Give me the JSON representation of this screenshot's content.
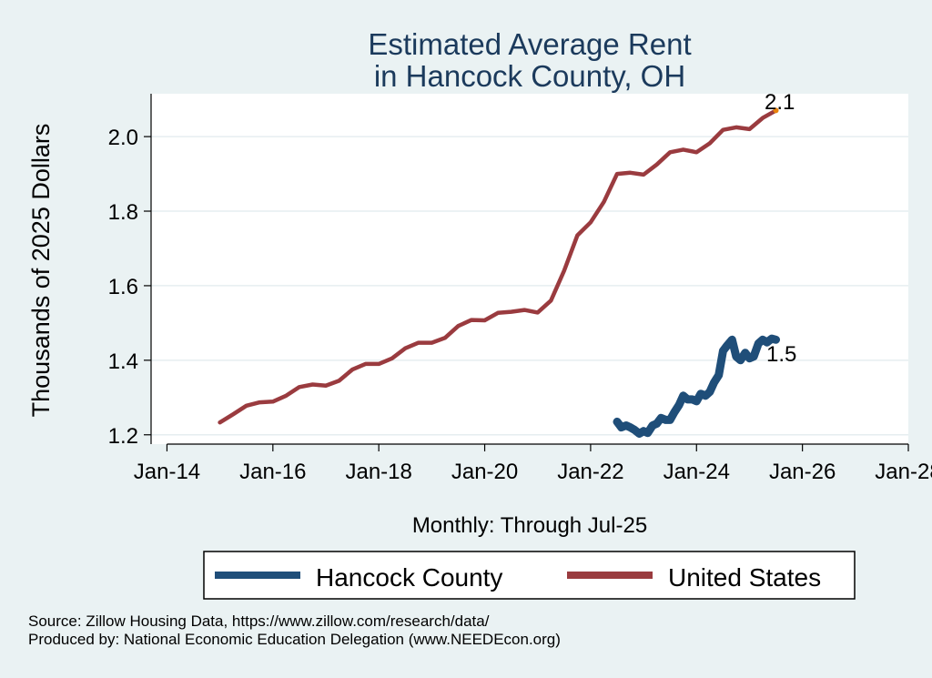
{
  "chart_data": {
    "type": "line",
    "title_lines": [
      "Estimated Average Rent",
      "in Hancock County, OH"
    ],
    "xlabel": "Monthly: Through Jul-25",
    "ylabel": "Thousands of 2025 Dollars",
    "xlim": [
      2013.7,
      2028.0
    ],
    "ylim": [
      1.175,
      2.115
    ],
    "x_ticks": [
      2014,
      2016,
      2018,
      2020,
      2022,
      2024,
      2026,
      2028
    ],
    "x_tick_labels": [
      "Jan-14",
      "Jan-16",
      "Jan-18",
      "Jan-20",
      "Jan-22",
      "Jan-24",
      "Jan-26",
      "Jan-28"
    ],
    "y_ticks": [
      1.2,
      1.4,
      1.6,
      1.8,
      2.0
    ],
    "y_tick_labels": [
      "1.2",
      "1.4",
      "1.6",
      "1.8",
      "2.0"
    ],
    "grid": "horizontal",
    "series": [
      {
        "name": "Hancock County",
        "color": "#1f4e79",
        "end_label": "1.5",
        "points": [
          [
            2022.5,
            1.235
          ],
          [
            2022.58,
            1.22
          ],
          [
            2022.67,
            1.225
          ],
          [
            2022.75,
            1.22
          ],
          [
            2022.83,
            1.213
          ],
          [
            2022.92,
            1.203
          ],
          [
            2023.0,
            1.21
          ],
          [
            2023.08,
            1.205
          ],
          [
            2023.17,
            1.225
          ],
          [
            2023.25,
            1.23
          ],
          [
            2023.33,
            1.245
          ],
          [
            2023.42,
            1.24
          ],
          [
            2023.5,
            1.24
          ],
          [
            2023.58,
            1.26
          ],
          [
            2023.67,
            1.28
          ],
          [
            2023.75,
            1.305
          ],
          [
            2023.83,
            1.295
          ],
          [
            2023.92,
            1.295
          ],
          [
            2024.0,
            1.29
          ],
          [
            2024.08,
            1.31
          ],
          [
            2024.17,
            1.305
          ],
          [
            2024.25,
            1.315
          ],
          [
            2024.33,
            1.34
          ],
          [
            2024.42,
            1.36
          ],
          [
            2024.5,
            1.425
          ],
          [
            2024.58,
            1.44
          ],
          [
            2024.67,
            1.455
          ],
          [
            2024.75,
            1.41
          ],
          [
            2024.83,
            1.4
          ],
          [
            2024.92,
            1.42
          ],
          [
            2025.0,
            1.405
          ],
          [
            2025.08,
            1.41
          ],
          [
            2025.17,
            1.445
          ],
          [
            2025.25,
            1.455
          ],
          [
            2025.33,
            1.448
          ],
          [
            2025.42,
            1.458
          ],
          [
            2025.5,
            1.455
          ]
        ]
      },
      {
        "name": "United States",
        "color": "#9a3b3f",
        "end_label": "2.1",
        "points": [
          [
            2015.0,
            1.233
          ],
          [
            2015.25,
            1.255
          ],
          [
            2015.5,
            1.278
          ],
          [
            2015.75,
            1.287
          ],
          [
            2016.0,
            1.289
          ],
          [
            2016.25,
            1.305
          ],
          [
            2016.5,
            1.328
          ],
          [
            2016.75,
            1.335
          ],
          [
            2017.0,
            1.332
          ],
          [
            2017.25,
            1.345
          ],
          [
            2017.5,
            1.375
          ],
          [
            2017.75,
            1.39
          ],
          [
            2018.0,
            1.39
          ],
          [
            2018.25,
            1.405
          ],
          [
            2018.5,
            1.432
          ],
          [
            2018.75,
            1.447
          ],
          [
            2019.0,
            1.447
          ],
          [
            2019.25,
            1.46
          ],
          [
            2019.5,
            1.492
          ],
          [
            2019.75,
            1.508
          ],
          [
            2020.0,
            1.507
          ],
          [
            2020.25,
            1.527
          ],
          [
            2020.5,
            1.53
          ],
          [
            2020.75,
            1.535
          ],
          [
            2021.0,
            1.528
          ],
          [
            2021.25,
            1.56
          ],
          [
            2021.5,
            1.64
          ],
          [
            2021.75,
            1.735
          ],
          [
            2022.0,
            1.77
          ],
          [
            2022.25,
            1.825
          ],
          [
            2022.5,
            1.9
          ],
          [
            2022.75,
            1.903
          ],
          [
            2023.0,
            1.898
          ],
          [
            2023.25,
            1.925
          ],
          [
            2023.5,
            1.958
          ],
          [
            2023.75,
            1.965
          ],
          [
            2024.0,
            1.958
          ],
          [
            2024.25,
            1.982
          ],
          [
            2024.5,
            2.018
          ],
          [
            2024.75,
            2.025
          ],
          [
            2025.0,
            2.02
          ],
          [
            2025.25,
            2.05
          ],
          [
            2025.5,
            2.07
          ]
        ]
      }
    ],
    "legend": {
      "placement": "bottom",
      "entries": [
        "Hancock County",
        "United States"
      ]
    },
    "end_marker_color": "#e8820c"
  },
  "notes": {
    "source": "Source: Zillow Housing Data, https://www.zillow.com/research/data/",
    "produced_by": "Produced by: National Economic Education Delegation (www.NEEDEcon.org)"
  }
}
